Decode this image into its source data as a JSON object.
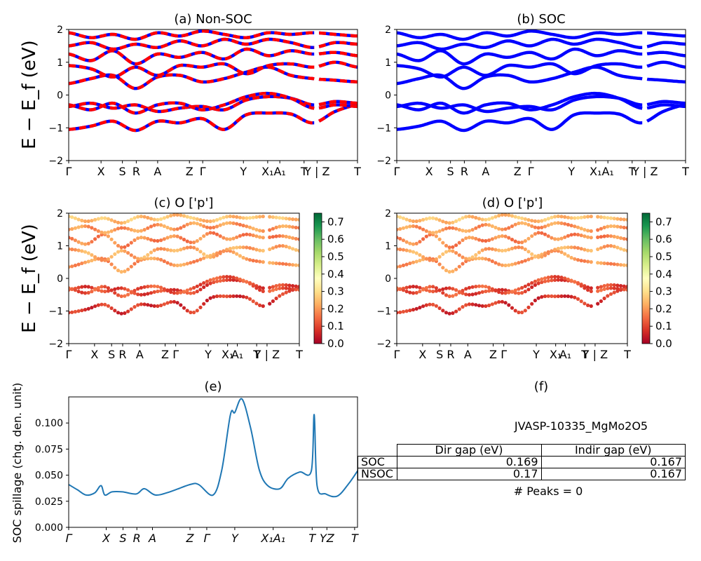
{
  "panels": {
    "a_title": "(a) Non-SOC",
    "b_title": "(b) SOC",
    "c_title": "(c)  O ['p']",
    "d_title": "(d) O ['p']",
    "e_title": "(e)",
    "f_title": "(f)"
  },
  "band_ylabel": "E − E_f (eV)",
  "spillage_ylabel": "SOC spillage (chg. den. unit)",
  "kpath_labels": [
    "Γ",
    "X",
    "S",
    "R",
    "A",
    "Z",
    "Γ",
    "Y",
    "X₁",
    "A₁",
    "T",
    "Y | Z",
    "T"
  ],
  "colorbar_ticks": [
    "0.0",
    "0.1",
    "0.2",
    "0.3",
    "0.4",
    "0.5",
    "0.6",
    "0.7"
  ],
  "info": {
    "material": "JVASP-10335_MgMo2O5",
    "peaks": "# Peaks = 0",
    "table": {
      "headers": [
        "",
        "Dir gap (eV)",
        "Indir gap (eV)"
      ],
      "rows": [
        [
          "SOC",
          "0.169",
          "0.167"
        ],
        [
          "NSOC",
          "0.17",
          "0.167"
        ]
      ]
    }
  },
  "colors": {
    "nonsoc_up": "#0000ff",
    "nonsoc_dn": "#ff0000",
    "soc": "#0000ff",
    "spillage": "#1f77b4",
    "cmap": "RdYlGn"
  },
  "chart_data": [
    {
      "type": "line",
      "title": "(a) Non-SOC",
      "ylabel": "E − E_f (eV)",
      "ylim": [
        -2,
        2
      ],
      "yticks": [
        -2,
        -1,
        0,
        1,
        2
      ],
      "xticklabels": [
        "Γ",
        "X",
        "S",
        "R",
        "A",
        "Z",
        "Γ",
        "Y",
        "X₁",
        "A₁",
        "T",
        "Y | Z",
        "T"
      ],
      "xtick_pos": [
        0,
        0.112,
        0.186,
        0.234,
        0.308,
        0.418,
        0.464,
        0.605,
        0.689,
        0.731,
        0.815,
        0.86,
        1.0
      ],
      "gap_segment": [
        0.855,
        0.865
      ],
      "series": [
        {
          "values": [
            -1.05,
            -0.95,
            -0.8,
            -1.08,
            -0.8,
            -0.85,
            -0.72,
            -1.05,
            -0.6,
            -0.55,
            -0.58,
            -0.85,
            -0.5,
            -0.3
          ]
        },
        {
          "values": [
            -0.35,
            -0.25,
            -0.4,
            -0.3,
            -0.5,
            -0.4,
            -0.35,
            -0.45,
            -0.15,
            -0.05,
            -0.1,
            -0.3,
            -0.2,
            -0.25
          ]
        },
        {
          "values": [
            -0.3,
            -0.45,
            -0.25,
            -0.55,
            -0.3,
            -0.25,
            -0.45,
            -0.3,
            -0.05,
            0.05,
            -0.1,
            -0.4,
            -0.3,
            -0.35
          ]
        },
        {
          "values": [
            0.35,
            0.5,
            0.6,
            0.2,
            0.55,
            0.6,
            0.4,
            0.5,
            0.7,
            0.85,
            0.6,
            0.5,
            0.45,
            0.4
          ]
        },
        {
          "values": [
            0.9,
            0.8,
            0.55,
            0.85,
            0.6,
            0.9,
            0.85,
            0.95,
            0.65,
            0.9,
            0.95,
            0.85,
            1.0,
            0.85
          ]
        },
        {
          "values": [
            1.25,
            1.05,
            1.35,
            0.95,
            1.25,
            1.15,
            1.3,
            1.1,
            1.4,
            1.2,
            1.35,
            1.25,
            1.3,
            1.2
          ]
        },
        {
          "values": [
            1.5,
            1.6,
            1.4,
            1.55,
            1.45,
            1.65,
            1.5,
            1.7,
            1.55,
            1.7,
            1.6,
            1.45,
            1.6,
            1.55
          ]
        },
        {
          "values": [
            1.9,
            1.75,
            1.85,
            1.7,
            1.9,
            1.8,
            1.95,
            1.85,
            1.75,
            1.9,
            1.85,
            1.9,
            1.85,
            1.8
          ]
        }
      ]
    },
    {
      "type": "line",
      "title": "(b) SOC",
      "ylim": [
        -2,
        2
      ],
      "yticks": [
        -2,
        -1,
        0,
        1,
        2
      ],
      "xticklabels": [
        "Γ",
        "X",
        "S",
        "R",
        "A",
        "Z",
        "Γ",
        "Y",
        "X₁",
        "A₁",
        "T",
        "Y | Z",
        "T"
      ],
      "series": [
        {
          "values": [
            -1.05,
            -0.95,
            -0.8,
            -1.08,
            -0.8,
            -0.85,
            -0.72,
            -1.05,
            -0.6,
            -0.55,
            -0.58,
            -0.85,
            -0.5,
            -0.3
          ]
        },
        {
          "values": [
            -0.35,
            -0.25,
            -0.4,
            -0.3,
            -0.5,
            -0.4,
            -0.35,
            -0.45,
            -0.15,
            -0.05,
            -0.1,
            -0.3,
            -0.2,
            -0.25
          ]
        },
        {
          "values": [
            -0.3,
            -0.45,
            -0.25,
            -0.55,
            -0.3,
            -0.25,
            -0.45,
            -0.3,
            -0.05,
            0.05,
            -0.1,
            -0.4,
            -0.3,
            -0.35
          ]
        },
        {
          "values": [
            0.35,
            0.5,
            0.6,
            0.2,
            0.55,
            0.6,
            0.4,
            0.5,
            0.7,
            0.85,
            0.6,
            0.5,
            0.45,
            0.4
          ]
        },
        {
          "values": [
            0.9,
            0.8,
            0.55,
            0.85,
            0.6,
            0.9,
            0.85,
            0.95,
            0.65,
            0.9,
            0.95,
            0.85,
            1.0,
            0.85
          ]
        },
        {
          "values": [
            1.25,
            1.05,
            1.35,
            0.95,
            1.25,
            1.15,
            1.3,
            1.1,
            1.4,
            1.2,
            1.35,
            1.25,
            1.3,
            1.2
          ]
        },
        {
          "values": [
            1.5,
            1.6,
            1.4,
            1.55,
            1.45,
            1.65,
            1.5,
            1.7,
            1.55,
            1.7,
            1.6,
            1.45,
            1.6,
            1.55
          ]
        },
        {
          "values": [
            1.9,
            1.75,
            1.85,
            1.7,
            1.9,
            1.8,
            1.95,
            1.85,
            1.75,
            1.9,
            1.85,
            1.9,
            1.85,
            1.8
          ]
        }
      ]
    },
    {
      "type": "scatter",
      "title": "(c)  O ['p']",
      "ylim": [
        -2,
        2
      ],
      "colorbar": {
        "range": [
          0.0,
          0.75
        ],
        "ticks": [
          0.0,
          0.1,
          0.2,
          0.3,
          0.4,
          0.5,
          0.6,
          0.7
        ]
      },
      "band_weights": [
        0.08,
        0.1,
        0.12,
        0.2,
        0.22,
        0.18,
        0.2,
        0.25
      ]
    },
    {
      "type": "scatter",
      "title": "(d) O ['p']",
      "ylim": [
        -2,
        2
      ],
      "colorbar": {
        "range": [
          0.0,
          0.75
        ],
        "ticks": [
          0.0,
          0.1,
          0.2,
          0.3,
          0.4,
          0.5,
          0.6,
          0.7
        ]
      },
      "band_weights": [
        0.08,
        0.1,
        0.12,
        0.2,
        0.22,
        0.18,
        0.2,
        0.25
      ]
    },
    {
      "type": "line",
      "title": "(e)",
      "ylabel": "SOC spillage (chg. den. unit)",
      "ylim": [
        0.0,
        0.125
      ],
      "yticks": [
        0.0,
        0.025,
        0.05,
        0.075,
        0.1
      ],
      "x": [
        0,
        0.03,
        0.06,
        0.09,
        0.112,
        0.125,
        0.15,
        0.186,
        0.234,
        0.262,
        0.3,
        0.35,
        0.42,
        0.45,
        0.5,
        0.53,
        0.56,
        0.575,
        0.6,
        0.63,
        0.66,
        0.689,
        0.731,
        0.76,
        0.8,
        0.84,
        0.85,
        0.86,
        0.89,
        0.93,
        0.97,
        1.0
      ],
      "values": [
        0.041,
        0.036,
        0.031,
        0.033,
        0.04,
        0.031,
        0.034,
        0.034,
        0.032,
        0.037,
        0.031,
        0.034,
        0.041,
        0.041,
        0.031,
        0.055,
        0.108,
        0.11,
        0.123,
        0.095,
        0.055,
        0.04,
        0.037,
        0.047,
        0.053,
        0.054,
        0.108,
        0.04,
        0.032,
        0.03,
        0.042,
        0.054
      ],
      "xticklabels": [
        "Γ",
        "X",
        "S",
        "R",
        "A",
        "Z",
        "Γ",
        "Y",
        "X₁A₁",
        "T",
        "YZ",
        "T"
      ]
    }
  ]
}
